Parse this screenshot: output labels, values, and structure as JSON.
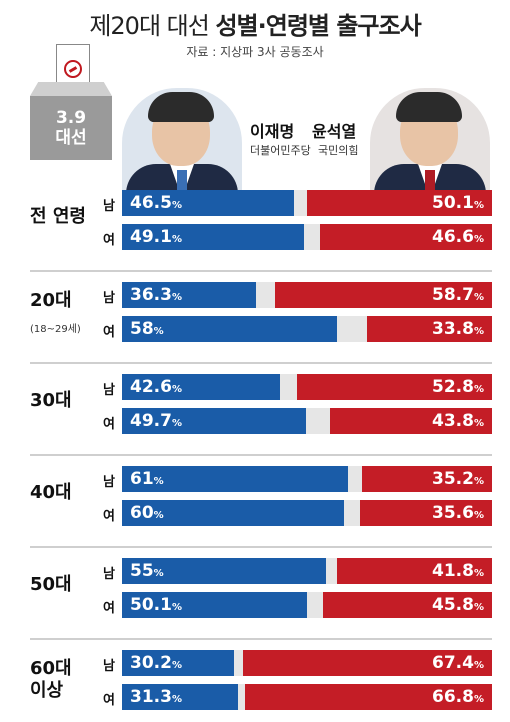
{
  "header": {
    "title_light": "제20대 대선",
    "title_bold": "성별·연령별 출구조사",
    "source": "자료 : 지상파 3사 공동조사"
  },
  "ballot": {
    "line1": "3.9",
    "line2": "대선"
  },
  "candidates": {
    "left": {
      "name": "이재명",
      "party": "더불어민주당"
    },
    "right": {
      "name": "윤석열",
      "party": "국민의힘"
    }
  },
  "colors": {
    "lee": "#1a5ca8",
    "yoon": "#c41d26",
    "track": "#e6e6e6"
  },
  "chart_data": {
    "type": "bar",
    "stacked": "diverging",
    "xlim": [
      0,
      100
    ],
    "series_names": [
      "이재명",
      "윤석열"
    ],
    "groups": [
      {
        "label": "전 연령",
        "sublabel": "",
        "rows": [
          {
            "gender": "남",
            "lee": 46.5,
            "yoon": 50.1
          },
          {
            "gender": "여",
            "lee": 49.1,
            "yoon": 46.6
          }
        ]
      },
      {
        "label": "20대",
        "sublabel": "(18~29세)",
        "rows": [
          {
            "gender": "남",
            "lee": 36.3,
            "yoon": 58.7
          },
          {
            "gender": "여",
            "lee": 58,
            "yoon": 33.8
          }
        ]
      },
      {
        "label": "30대",
        "sublabel": "",
        "rows": [
          {
            "gender": "남",
            "lee": 42.6,
            "yoon": 52.8
          },
          {
            "gender": "여",
            "lee": 49.7,
            "yoon": 43.8
          }
        ]
      },
      {
        "label": "40대",
        "sublabel": "",
        "rows": [
          {
            "gender": "남",
            "lee": 61,
            "yoon": 35.2
          },
          {
            "gender": "여",
            "lee": 60,
            "yoon": 35.6
          }
        ]
      },
      {
        "label": "50대",
        "sublabel": "",
        "rows": [
          {
            "gender": "남",
            "lee": 55,
            "yoon": 41.8
          },
          {
            "gender": "여",
            "lee": 50.1,
            "yoon": 45.8
          }
        ]
      },
      {
        "label": "60대\n이상",
        "sublabel": "",
        "rows": [
          {
            "gender": "남",
            "lee": 30.2,
            "yoon": 67.4
          },
          {
            "gender": "여",
            "lee": 31.3,
            "yoon": 66.8
          }
        ]
      }
    ],
    "unit": "%"
  }
}
